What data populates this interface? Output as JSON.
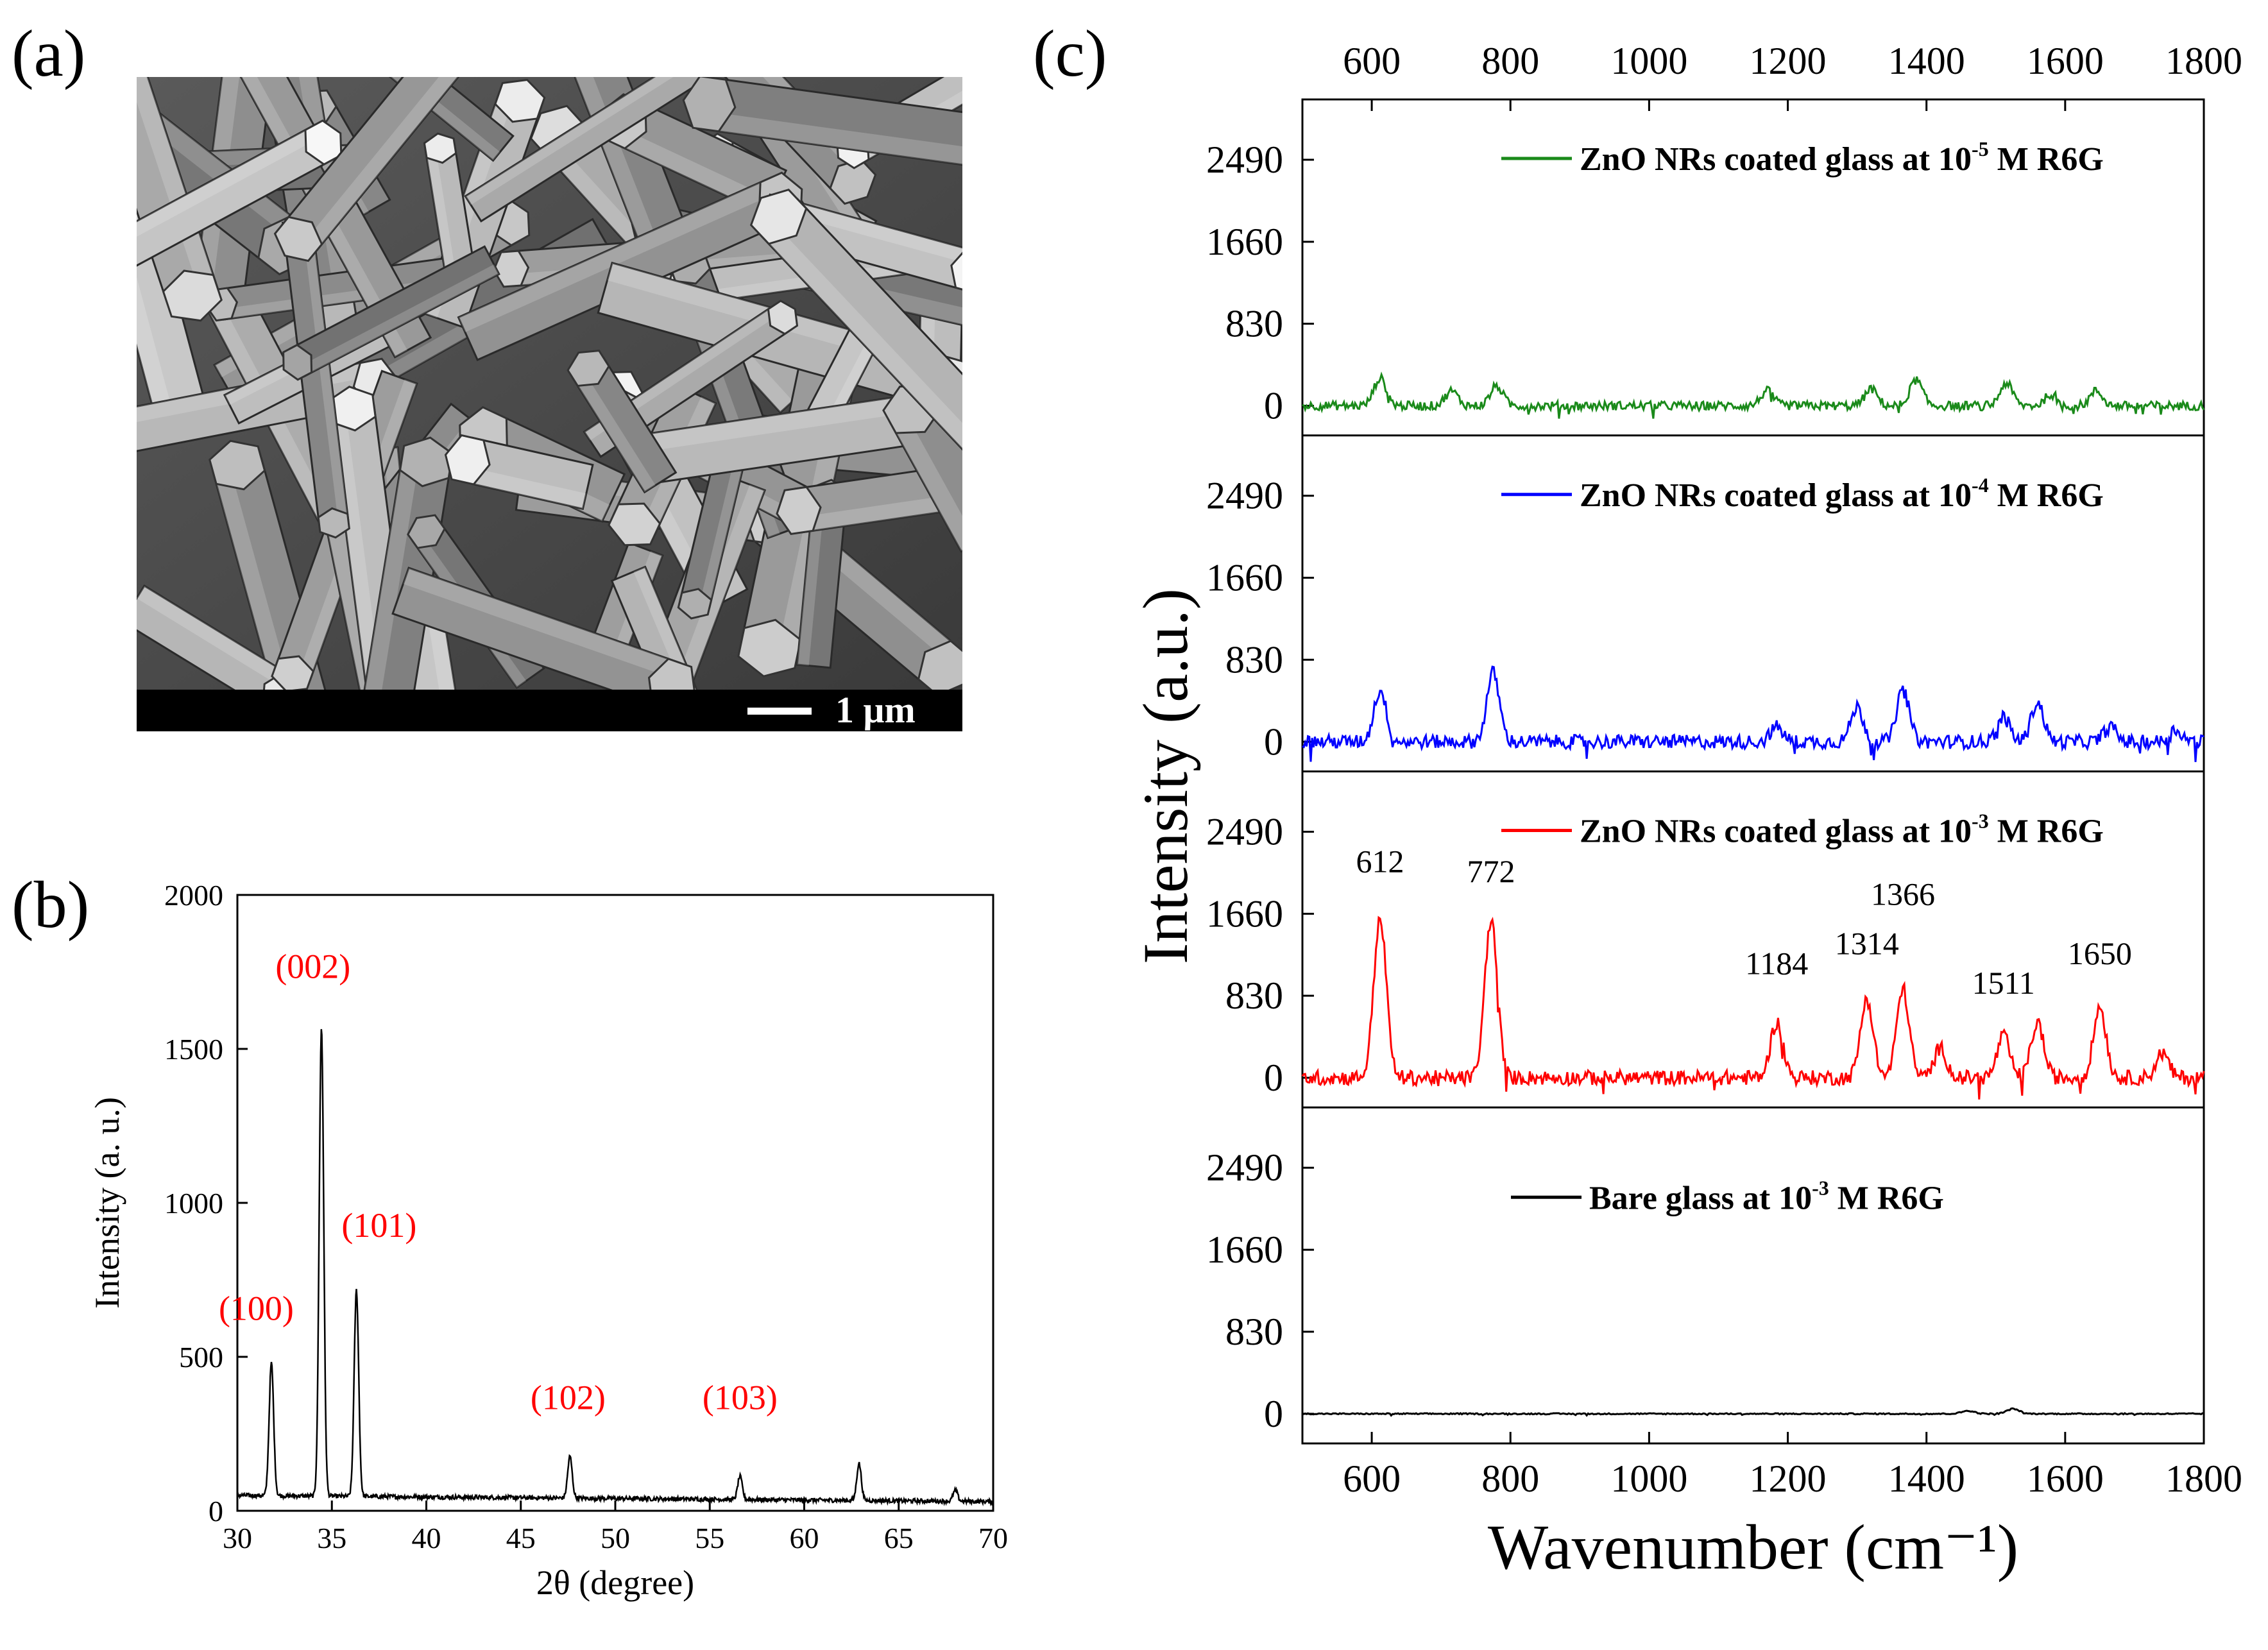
{
  "panels": {
    "a": {
      "label": "(a)",
      "scale_bar_label": "1 μm"
    },
    "b": {
      "label": "(b)"
    },
    "c": {
      "label": "(c)"
    }
  },
  "chart_data": [
    {
      "id": "xrd",
      "type": "line",
      "title": "",
      "xlabel": "2θ (degree)",
      "ylabel": "Intensity (a. u.)",
      "xlim": [
        30,
        70
      ],
      "ylim": [
        0,
        2000
      ],
      "xticks": [
        30,
        35,
        40,
        45,
        50,
        55,
        60,
        65,
        70
      ],
      "yticks": [
        0,
        500,
        1000,
        1500,
        2000
      ],
      "baseline": 50,
      "peaks": [
        {
          "x": 31.8,
          "y": 480,
          "label": "(100)"
        },
        {
          "x": 34.45,
          "y": 1570,
          "label": "(002)"
        },
        {
          "x": 36.3,
          "y": 720,
          "label": "(101)"
        },
        {
          "x": 47.6,
          "y": 185,
          "label": "(102)"
        },
        {
          "x": 56.6,
          "y": 125,
          "label": "(103)"
        },
        {
          "x": 62.9,
          "y": 170,
          "label": ""
        },
        {
          "x": 68.0,
          "y": 85,
          "label": ""
        }
      ],
      "label_color": "#ff0000"
    },
    {
      "id": "sers",
      "type": "line",
      "xlabel": "Wavenumber (cm⁻¹)",
      "ylabel": "Intensity (a.u.)",
      "xlim": [
        500,
        1800
      ],
      "xticks": [
        600,
        800,
        1000,
        1200,
        1400,
        1600,
        1800
      ],
      "yticks": [
        0,
        830,
        1660,
        2490
      ],
      "stack_ylim": [
        -300,
        3100
      ],
      "series": [
        {
          "name": "ZnO NRs coated glass at 10⁻⁵ M R6G",
          "legend_parts": [
            "ZnO NRs coated glass at 10",
            "-5",
            " M R6G"
          ],
          "color": "#1a8a1a",
          "noise": 45,
          "peaks": [
            [
              612,
              280
            ],
            [
              715,
              150
            ],
            [
              780,
              200
            ],
            [
              1170,
              150
            ],
            [
              1320,
              170
            ],
            [
              1385,
              260
            ],
            [
              1515,
              230
            ],
            [
              1580,
              120
            ],
            [
              1645,
              150
            ]
          ]
        },
        {
          "name": "ZnO NRs coated glass at 10⁻⁴ M R6G",
          "legend_parts": [
            "ZnO NRs coated glass at 10",
            "-4",
            " M R6G"
          ],
          "color": "#0000ff",
          "noise": 70,
          "peaks": [
            [
              612,
              520
            ],
            [
              775,
              700
            ],
            [
              1184,
              150
            ],
            [
              1300,
              350
            ],
            [
              1366,
              520
            ],
            [
              1511,
              250
            ],
            [
              1560,
              400
            ],
            [
              1665,
              150
            ],
            [
              1760,
              120
            ]
          ]
        },
        {
          "name": "ZnO NRs coated glass at 10⁻³ M R6G",
          "legend_parts": [
            "ZnO NRs coated glass at 10",
            "-3",
            " M R6G"
          ],
          "color": "#ff0000",
          "noise": 75,
          "peaks": [
            [
              612,
              1620
            ],
            [
              772,
              1600
            ],
            [
              1184,
              560
            ],
            [
              1314,
              800
            ],
            [
              1366,
              900
            ],
            [
              1420,
              300
            ],
            [
              1511,
              420
            ],
            [
              1560,
              560
            ],
            [
              1650,
              720
            ],
            [
              1740,
              250
            ]
          ],
          "peak_labels": [
            {
              "x": 612,
              "text": "612",
              "at": 2080
            },
            {
              "x": 772,
              "text": "772",
              "at": 1980
            },
            {
              "x": 1184,
              "text": "1184",
              "at": 1050
            },
            {
              "x": 1314,
              "text": "1314",
              "at": 1250
            },
            {
              "x": 1366,
              "text": "1366",
              "at": 1750
            },
            {
              "x": 1511,
              "text": "1511",
              "at": 850
            },
            {
              "x": 1650,
              "text": "1650",
              "at": 1150
            }
          ]
        },
        {
          "name": "Bare glass at 10⁻³ M R6G",
          "legend_parts": [
            "Bare glass  at 10",
            "-3",
            " M R6G"
          ],
          "color": "#000000",
          "noise": 6,
          "peaks": [
            [
              1460,
              30
            ],
            [
              1525,
              50
            ]
          ]
        }
      ]
    }
  ]
}
